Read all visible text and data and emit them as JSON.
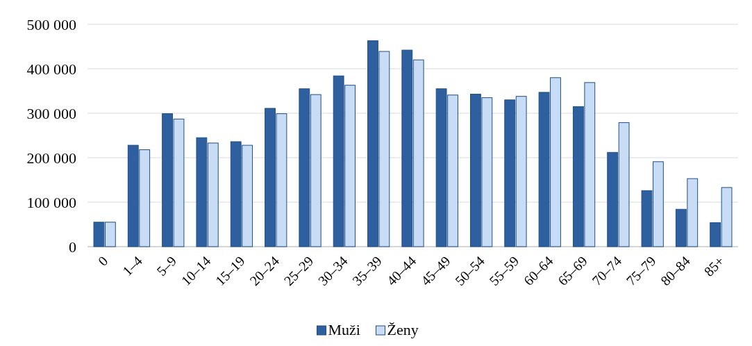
{
  "chart_data": {
    "type": "bar",
    "categories": [
      "0",
      "1–4",
      "5–9",
      "10–14",
      "15–19",
      "20–24",
      "25–29",
      "30–34",
      "35–39",
      "40–44",
      "45–49",
      "50–54",
      "55–59",
      "60–64",
      "65–69",
      "70–74",
      "75–79",
      "80–84",
      "85+"
    ],
    "series": [
      {
        "name": "Muži",
        "color": "#2e5f9e",
        "values": [
          55000,
          228000,
          299000,
          245000,
          236000,
          311000,
          355000,
          384000,
          463000,
          442000,
          355000,
          343000,
          330000,
          347000,
          315000,
          212000,
          126000,
          84000,
          54000
        ]
      },
      {
        "name": "Ženy",
        "color": "#c9dcf5",
        "values": [
          55000,
          218000,
          287000,
          233000,
          228000,
          299000,
          342000,
          363000,
          439000,
          420000,
          341000,
          335000,
          338000,
          380000,
          369000,
          279000,
          191000,
          153000,
          133000
        ]
      }
    ],
    "ylim": [
      0,
      500000
    ],
    "yticks": [
      {
        "value": 0,
        "label": "0"
      },
      {
        "value": 100000,
        "label": "100 000"
      },
      {
        "value": 200000,
        "label": "200 000"
      },
      {
        "value": 300000,
        "label": "300 000"
      },
      {
        "value": 400000,
        "label": "400 000"
      },
      {
        "value": 500000,
        "label": "500 000"
      }
    ],
    "grid": "y",
    "legend": "bottom"
  }
}
